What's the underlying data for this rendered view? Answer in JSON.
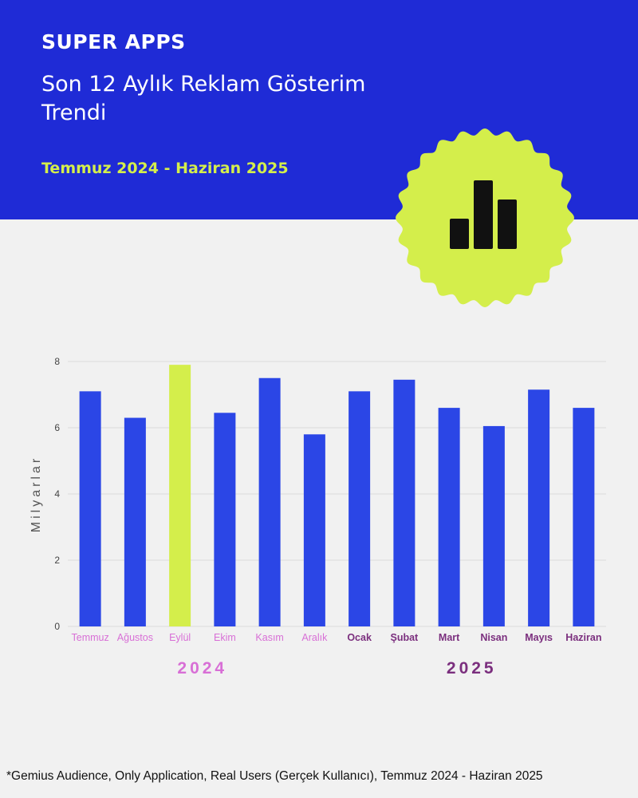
{
  "header": {
    "brand": "SUPER APPS",
    "title": "Son 12 Aylık Reklam Gösterim Trendi",
    "period": "Temmuz 2024 - Haziran 2025",
    "badge_icon": "bar-chart-icon"
  },
  "colors": {
    "header_bg": "#1f2bd6",
    "accent": "#d4ee4b",
    "bar": "#2b46e6",
    "highlight_bar": "#d4ee4b",
    "label_2024": "#d86fd6",
    "label_2025": "#7b2f7e"
  },
  "chart_data": {
    "type": "bar",
    "ylabel": "Milyarlar",
    "ylim": [
      0,
      8
    ],
    "yticks": [
      0,
      2,
      4,
      6,
      8
    ],
    "grid": true,
    "categories": [
      "Temmuz",
      "Ağustos",
      "Eylül",
      "Ekim",
      "Kasım",
      "Aralık",
      "Ocak",
      "Şubat",
      "Mart",
      "Nisan",
      "Mayıs",
      "Haziran"
    ],
    "values": [
      7.1,
      6.3,
      7.9,
      6.45,
      7.5,
      5.8,
      7.1,
      7.45,
      6.6,
      6.05,
      7.15,
      6.6
    ],
    "highlight_category": "Eylül",
    "year_groups": [
      {
        "label": "2024",
        "categories": [
          "Temmuz",
          "Ağustos",
          "Eylül",
          "Ekim",
          "Kasım",
          "Aralık"
        ]
      },
      {
        "label": "2025",
        "categories": [
          "Ocak",
          "Şubat",
          "Mart",
          "Nisan",
          "Mayıs",
          "Haziran"
        ]
      }
    ]
  },
  "footnote": "*Gemius Audience, Only Application, Real Users (Gerçek Kullanıcı), Temmuz 2024 - Haziran 2025"
}
